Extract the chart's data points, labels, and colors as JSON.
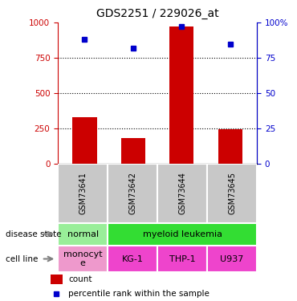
{
  "title": "GDS2251 / 229026_at",
  "samples": [
    "GSM73641",
    "GSM73642",
    "GSM73644",
    "GSM73645"
  ],
  "counts": [
    330,
    185,
    975,
    245
  ],
  "percentiles": [
    88,
    82,
    97,
    85
  ],
  "ylim_left": [
    0,
    1000
  ],
  "ylim_right": [
    0,
    100
  ],
  "yticks_left": [
    0,
    250,
    500,
    750,
    1000
  ],
  "yticks_right": [
    0,
    25,
    50,
    75,
    100
  ],
  "bar_color": "#cc0000",
  "dot_color": "#0000cc",
  "sample_bg_color": "#c8c8c8",
  "ds_normal_color": "#99ee99",
  "ds_leukemia_color": "#33dd33",
  "cl_mono_color": "#ee99cc",
  "cl_other_color": "#ee44cc",
  "legend_count_color": "#cc0000",
  "legend_pct_color": "#0000cc",
  "title_fontsize": 10,
  "tick_fontsize": 7.5,
  "label_fontsize": 7.5,
  "table_fontsize": 8
}
